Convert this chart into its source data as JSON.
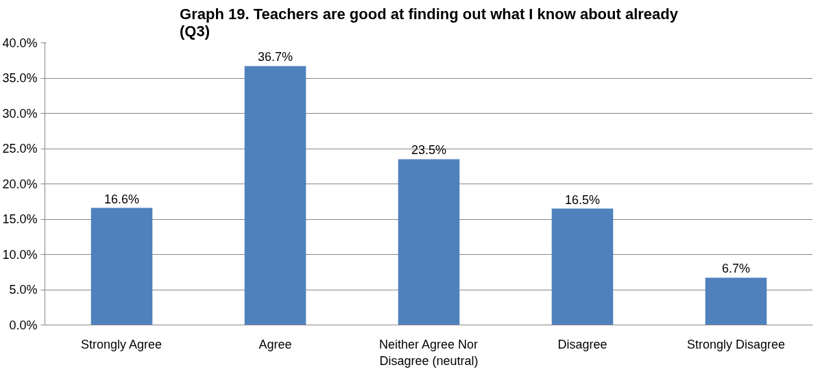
{
  "chart_data": {
    "type": "bar",
    "title": "Graph 19. Teachers are good at finding out what I know about already (Q3)",
    "categories": [
      "Strongly Agree",
      "Agree",
      "Neither Agree Nor Disagree (neutral)",
      "Disagree",
      "Strongly Disagree"
    ],
    "values": [
      16.6,
      36.7,
      23.5,
      16.5,
      6.7
    ],
    "value_labels": [
      "16.6%",
      "36.7%",
      "23.5%",
      "16.5%",
      "6.7%"
    ],
    "color": "#4f81bd",
    "ylim": [
      0,
      40
    ],
    "yticks": [
      {
        "value": 0,
        "label": "0.0%"
      },
      {
        "value": 5,
        "label": "5.0%"
      },
      {
        "value": 10,
        "label": "10.0%"
      },
      {
        "value": 15,
        "label": "15.0%"
      },
      {
        "value": 20,
        "label": "20.0%"
      },
      {
        "value": 25,
        "label": "25.0%"
      },
      {
        "value": 30,
        "label": "30.0%"
      },
      {
        "value": 35,
        "label": "35.0%"
      },
      {
        "value": 40,
        "label": "40.0%"
      }
    ],
    "grid": "y"
  }
}
